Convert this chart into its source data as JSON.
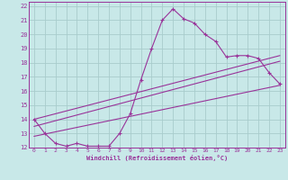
{
  "title": "",
  "xlabel": "Windchill (Refroidissement éolien,°C)",
  "ylabel": "",
  "background_color": "#c8e8e8",
  "grid_color": "#a8cccc",
  "line_color": "#993399",
  "xlim": [
    -0.5,
    23.5
  ],
  "ylim": [
    12,
    22.3
  ],
  "xticks": [
    0,
    1,
    2,
    3,
    4,
    5,
    6,
    7,
    8,
    9,
    10,
    11,
    12,
    13,
    14,
    15,
    16,
    17,
    18,
    19,
    20,
    21,
    22,
    23
  ],
  "yticks": [
    12,
    13,
    14,
    15,
    16,
    17,
    18,
    19,
    20,
    21,
    22
  ],
  "main_series_x": [
    0,
    1,
    2,
    3,
    4,
    5,
    6,
    7,
    8,
    9,
    10,
    11,
    12,
    13,
    14,
    15,
    16,
    17,
    18,
    19,
    20,
    21,
    22,
    23
  ],
  "main_series_y": [
    14.0,
    13.0,
    12.3,
    12.1,
    12.3,
    12.1,
    12.1,
    12.1,
    13.0,
    14.4,
    16.8,
    19.0,
    21.0,
    21.8,
    21.1,
    20.8,
    20.0,
    19.5,
    18.4,
    18.5,
    18.5,
    18.3,
    17.3,
    16.5
  ],
  "line1_x": [
    0,
    23
  ],
  "line1_y": [
    12.8,
    16.4
  ],
  "line2_x": [
    0,
    23
  ],
  "line2_y": [
    13.5,
    18.1
  ],
  "line3_x": [
    0,
    23
  ],
  "line3_y": [
    14.0,
    18.5
  ]
}
